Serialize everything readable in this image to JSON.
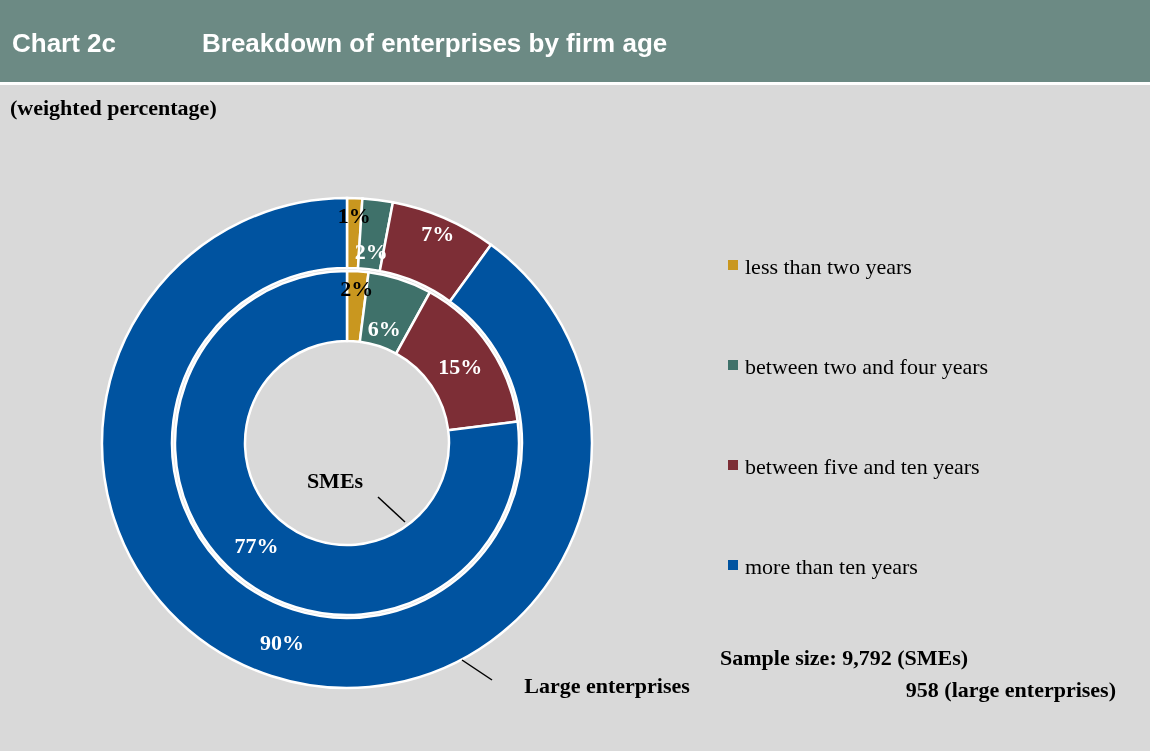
{
  "chart_data": {
    "type": "donut",
    "title": "Chart 2c",
    "subtitle": "Breakdown of enterprises by firm age",
    "annotations": [
      "(weighted percentage)",
      "Sample size: 9,792 (SMEs)",
      "958 (large enterprises)"
    ],
    "categories": [
      "less than two years",
      "between two and four years",
      "between five and ten years",
      "more than ten years"
    ],
    "colors": [
      "#c9971f",
      "#3f716a",
      "#7d2e36",
      "#0053a0"
    ],
    "series": [
      {
        "name": "SMEs",
        "values": [
          2,
          6,
          15,
          77
        ],
        "value_labels": [
          "2%",
          "6%",
          "15%",
          "77%"
        ]
      },
      {
        "name": "Large enterprises",
        "values": [
          1,
          2,
          7,
          90
        ],
        "value_labels": [
          "1%",
          "2%",
          "7%",
          "90%"
        ]
      }
    ],
    "data_labels": true,
    "legend": "right"
  }
}
